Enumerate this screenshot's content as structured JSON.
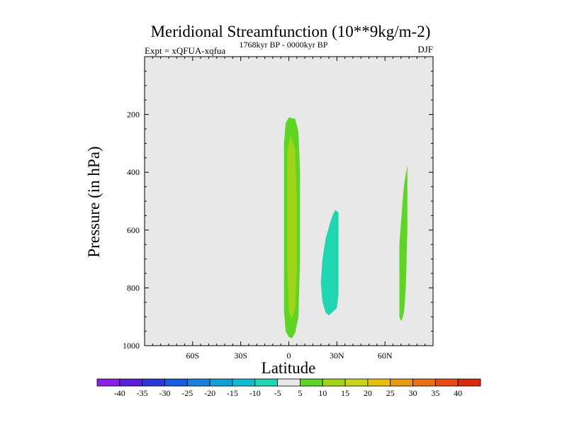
{
  "chart_data": {
    "type": "contour",
    "title": "Meridional Streamfunction (10**9kg/m-2)",
    "subtitle_left": "Expt = xQFUA-xqfua",
    "subtitle_center": "1768kyr BP - 0000kyr BP",
    "subtitle_right": "DJF",
    "xlabel": "Latitude",
    "ylabel": "Pressure (in hPa)",
    "xlim": [
      -90,
      90
    ],
    "ylim": [
      0,
      1000
    ],
    "y_inverted": true,
    "x_ticks": [
      {
        "value": -60,
        "label": "60S"
      },
      {
        "value": -30,
        "label": "30S"
      },
      {
        "value": 0,
        "label": "0"
      },
      {
        "value": 30,
        "label": "30N"
      },
      {
        "value": 60,
        "label": "60N"
      }
    ],
    "y_ticks": [
      {
        "value": 200,
        "label": "200"
      },
      {
        "value": 400,
        "label": "400"
      },
      {
        "value": 600,
        "label": "600"
      },
      {
        "value": 800,
        "label": "800"
      },
      {
        "value": 1000,
        "label": "1000"
      }
    ],
    "background_color": "#e8e8e8",
    "regions": [
      {
        "name": "equatorial-positive-cell",
        "level": "5 to 10",
        "color": "#5ed424",
        "outline": [
          [
            0,
            210
          ],
          [
            4,
            215
          ],
          [
            6,
            260
          ],
          [
            7,
            400
          ],
          [
            7,
            700
          ],
          [
            6,
            900
          ],
          [
            4,
            955
          ],
          [
            2,
            975
          ],
          [
            0,
            970
          ],
          [
            -2,
            950
          ],
          [
            -3,
            880
          ],
          [
            -3,
            600
          ],
          [
            -3,
            300
          ],
          [
            -2,
            230
          ]
        ]
      },
      {
        "name": "equatorial-core",
        "level": "10 to 15",
        "color": "#9fd41a",
        "outline": [
          [
            1,
            270
          ],
          [
            4,
            320
          ],
          [
            5,
            500
          ],
          [
            5,
            750
          ],
          [
            4,
            870
          ],
          [
            2,
            910
          ],
          [
            0,
            880
          ],
          [
            -1,
            700
          ],
          [
            -1,
            450
          ],
          [
            -1,
            330
          ]
        ]
      },
      {
        "name": "subtropical-negative-cell",
        "level": "-10 to -5",
        "color": "#20d6b0",
        "outline": [
          [
            29,
            530
          ],
          [
            31,
            540
          ],
          [
            31,
            600
          ],
          [
            31,
            820
          ],
          [
            30,
            870
          ],
          [
            28,
            880
          ],
          [
            25,
            895
          ],
          [
            23,
            885
          ],
          [
            21,
            850
          ],
          [
            20,
            780
          ],
          [
            21,
            700
          ],
          [
            23,
            630
          ],
          [
            26,
            570
          ],
          [
            28,
            540
          ]
        ]
      },
      {
        "name": "high-latitude-positive-cell",
        "level": "5 to 10",
        "color": "#5ed424",
        "outline": [
          [
            74,
            375
          ],
          [
            74,
            450
          ],
          [
            74,
            600
          ],
          [
            73,
            800
          ],
          [
            72,
            880
          ],
          [
            71,
            905
          ],
          [
            70,
            915
          ],
          [
            69,
            900
          ],
          [
            69,
            780
          ],
          [
            69,
            650
          ],
          [
            71,
            500
          ],
          [
            72,
            440
          ]
        ]
      }
    ],
    "colorbar": {
      "labels": [
        "-40",
        "-35",
        "-30",
        "-25",
        "-20",
        "-15",
        "-10",
        "-5",
        "5",
        "10",
        "15",
        "20",
        "25",
        "30",
        "35",
        "40"
      ],
      "colors": [
        "#8a1fe8",
        "#5a1fd6",
        "#2a38d6",
        "#1a5ce0",
        "#1a80e0",
        "#12a0d8",
        "#12bcd4",
        "#20d6b0",
        "#e8e8e8",
        "#5ed424",
        "#9fd41a",
        "#c8d41a",
        "#e8c012",
        "#e89a12",
        "#e87012",
        "#e84a12",
        "#d82a0a"
      ]
    }
  }
}
